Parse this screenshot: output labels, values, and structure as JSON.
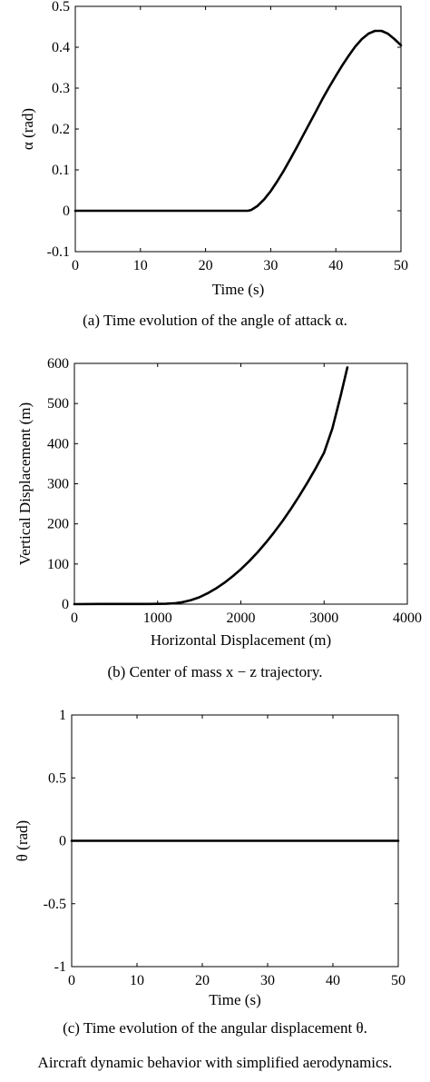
{
  "chart_data": [
    {
      "id": "alpha",
      "type": "line",
      "xlabel": "Time (s)",
      "ylabel": "α (rad)",
      "xlim": [
        0,
        50
      ],
      "ylim": [
        -0.1,
        0.5
      ],
      "xticks": [
        0,
        10,
        20,
        30,
        40,
        50
      ],
      "yticks": [
        -0.1,
        0,
        0.1,
        0.2,
        0.3,
        0.4,
        0.5
      ],
      "xtick_labels": [
        "0",
        "10",
        "20",
        "30",
        "40",
        "50"
      ],
      "ytick_labels": [
        "-0.1",
        "0",
        "0.1",
        "0.2",
        "0.3",
        "0.4",
        "0.5"
      ],
      "grid": false,
      "caption": "(a) Time evolution of the angle of attack α.",
      "series": [
        {
          "x": [
            0,
            5,
            10,
            15,
            20,
            25,
            26.5,
            27,
            28,
            29,
            30,
            31,
            32,
            33,
            34,
            35,
            36,
            37,
            38,
            39,
            40,
            41,
            42,
            43,
            44,
            45,
            46,
            47,
            48,
            49,
            50
          ],
          "y": [
            0,
            0,
            0,
            0,
            0,
            0,
            0,
            0.002,
            0.012,
            0.028,
            0.048,
            0.072,
            0.098,
            0.126,
            0.155,
            0.185,
            0.215,
            0.245,
            0.275,
            0.303,
            0.33,
            0.356,
            0.38,
            0.402,
            0.42,
            0.433,
            0.44,
            0.44,
            0.433,
            0.42,
            0.405
          ]
        }
      ]
    },
    {
      "id": "trajectory",
      "type": "line",
      "xlabel": "Horizontal Displacement (m)",
      "ylabel": "Vertical Displacement (m)",
      "xlim": [
        0,
        4000
      ],
      "ylim": [
        0,
        600
      ],
      "xticks": [
        0,
        1000,
        2000,
        3000,
        4000
      ],
      "yticks": [
        0,
        100,
        200,
        300,
        400,
        500,
        600
      ],
      "xtick_labels": [
        "0",
        "1000",
        "2000",
        "3000",
        "4000"
      ],
      "ytick_labels": [
        "0",
        "100",
        "200",
        "300",
        "400",
        "500",
        "600"
      ],
      "grid": false,
      "caption": "(b) Center of mass x − z trajectory.",
      "series": [
        {
          "x": [
            0,
            300,
            600,
            900,
            1100,
            1200,
            1300,
            1400,
            1500,
            1600,
            1700,
            1800,
            1900,
            2000,
            2100,
            2200,
            2300,
            2400,
            2500,
            2600,
            2700,
            2800,
            2900,
            3000,
            3100,
            3200,
            3280
          ],
          "y": [
            0,
            0.5,
            0.5,
            0.5,
            0.8,
            2,
            5,
            10,
            17,
            27,
            39,
            53,
            69,
            87,
            107,
            129,
            153,
            179,
            207,
            237,
            269,
            303,
            339,
            378,
            438,
            520,
            590
          ]
        }
      ]
    },
    {
      "id": "theta",
      "type": "line",
      "xlabel": "Time (s)",
      "ylabel": "θ (rad)",
      "xlim": [
        0,
        50
      ],
      "ylim": [
        -1,
        1
      ],
      "xticks": [
        0,
        10,
        20,
        30,
        40,
        50
      ],
      "yticks": [
        -1,
        -0.5,
        0,
        0.5,
        1
      ],
      "xtick_labels": [
        "0",
        "10",
        "20",
        "30",
        "40",
        "50"
      ],
      "ytick_labels": [
        "-1",
        "-0.5",
        "0",
        "0.5",
        "1"
      ],
      "grid": false,
      "caption": "(c) Time evolution of the angular displacement θ.",
      "series": [
        {
          "x": [
            0,
            50
          ],
          "y": [
            0,
            0
          ]
        }
      ]
    }
  ],
  "figure_caption": "Aircraft dynamic behavior with simplified aerodynamics."
}
